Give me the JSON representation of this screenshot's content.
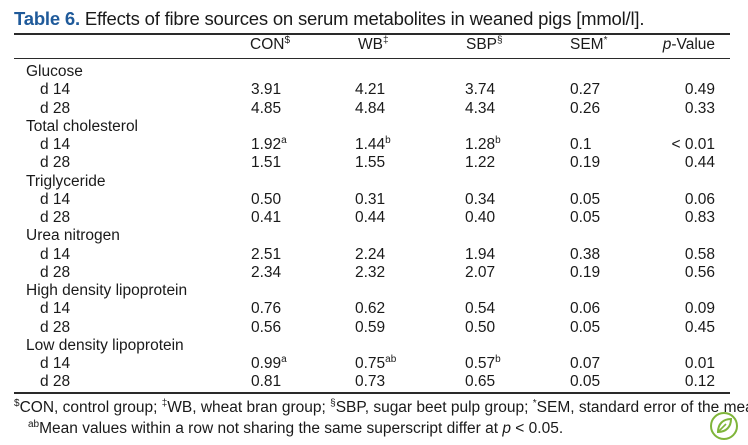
{
  "title": {
    "label": "Table 6.",
    "text": " Effects of fibre sources on serum metabolites in weaned pigs [mmol/l]."
  },
  "columns": {
    "con": {
      "label": "CON",
      "sup": "$"
    },
    "wb": {
      "label": "WB",
      "sup": "‡"
    },
    "sbp": {
      "label": "SBP",
      "sup": "§"
    },
    "sem": {
      "label": "SEM",
      "sup": "*"
    },
    "p_italic": "p",
    "p_rest": "-Value"
  },
  "rows": [
    {
      "label": "Glucose",
      "group": true
    },
    {
      "label": "d 14",
      "con": "3.91",
      "wb": "4.21",
      "sbp": "3.74",
      "sem": "0.27",
      "p": "0.49"
    },
    {
      "label": "d 28",
      "con": "4.85",
      "wb": "4.84",
      "sbp": "4.34",
      "sem": "0.26",
      "p": "0.33"
    },
    {
      "label": "Total cholesterol",
      "group": true
    },
    {
      "label": "d 14",
      "con": "1.92",
      "con_sup": "a",
      "wb": "1.44",
      "wb_sup": "b",
      "sbp": "1.28",
      "sbp_sup": "b",
      "sem": "0.1",
      "p": "< 0.01"
    },
    {
      "label": "d 28",
      "con": "1.51",
      "wb": "1.55",
      "sbp": "1.22",
      "sem": "0.19",
      "p": "0.44"
    },
    {
      "label": "Triglyceride",
      "group": true
    },
    {
      "label": "d 14",
      "con": "0.50",
      "wb": "0.31",
      "sbp": "0.34",
      "sem": "0.05",
      "p": "0.06"
    },
    {
      "label": "d 28",
      "con": "0.41",
      "wb": "0.44",
      "sbp": "0.40",
      "sem": "0.05",
      "p": "0.83"
    },
    {
      "label": "Urea nitrogen",
      "group": true
    },
    {
      "label": "d 14",
      "con": "2.51",
      "wb": "2.24",
      "sbp": "1.94",
      "sem": "0.38",
      "p": "0.58"
    },
    {
      "label": "d 28",
      "con": "2.34",
      "wb": "2.32",
      "sbp": "2.07",
      "sem": "0.19",
      "p": "0.56"
    },
    {
      "label": "High density lipoprotein",
      "group": true
    },
    {
      "label": "d 14",
      "con": "0.76",
      "wb": "0.62",
      "sbp": "0.54",
      "sem": "0.06",
      "p": "0.09"
    },
    {
      "label": "d 28",
      "con": "0.56",
      "wb": "0.59",
      "sbp": "0.50",
      "sem": "0.05",
      "p": "0.45"
    },
    {
      "label": "Low density lipoprotein",
      "group": true
    },
    {
      "label": "d 14",
      "con": "0.99",
      "con_sup": "a",
      "wb": "0.75",
      "wb_sup": "ab",
      "sbp": "0.57",
      "sbp_sup": "b",
      "sem": "0.07",
      "p": "0.01"
    },
    {
      "label": "d 28",
      "con": "0.81",
      "wb": "0.73",
      "sbp": "0.65",
      "sem": "0.05",
      "p": "0.12"
    }
  ],
  "footnotes": {
    "n1_sup": "$",
    "n1_text": "CON, control group; ",
    "n2_sup": "‡",
    "n2_text": "WB, wheat bran group; ",
    "n3_sup": "§",
    "n3_text": "SBP, sugar beet pulp group; ",
    "n4_sup": "*",
    "n4_text": "SEM, standard error of the mean.",
    "ab_sup": "ab",
    "ab_text": "Mean values within a row not sharing the same superscript differ at ",
    "ab_p": "p",
    "ab_tail": " < 0.05."
  },
  "icons": {
    "corner_logo": "leaf-badge-icon"
  },
  "colors": {
    "title_label": "#1f5a9a",
    "logo": "#7fb53a"
  }
}
